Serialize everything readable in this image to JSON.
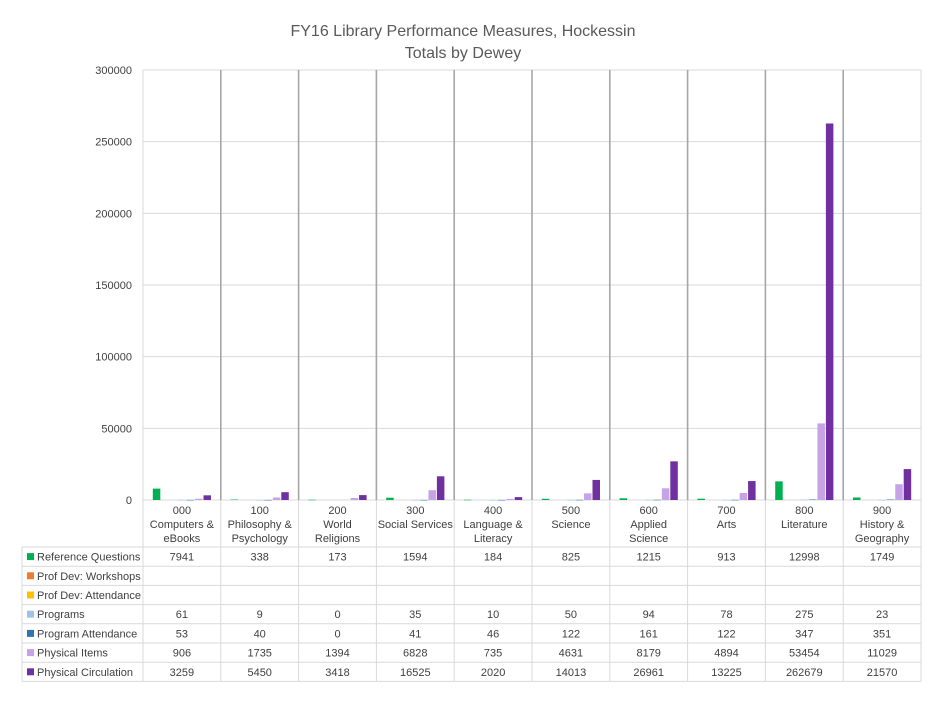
{
  "chart_data": {
    "type": "bar",
    "title": "FY16 Library Performance Measures, Hockessin",
    "subtitle": "Totals by Dewey",
    "ylim": [
      0,
      300000
    ],
    "yticks": [
      "300000",
      "250000",
      "200000",
      "150000",
      "100000",
      "50000",
      "0"
    ],
    "grid": true,
    "legend": "data-table",
    "categories": [
      [
        "000",
        "Computers &",
        "eBooks"
      ],
      [
        "100",
        "Philosophy &",
        "Psychology"
      ],
      [
        "200",
        "World",
        "Religions"
      ],
      [
        "300",
        "Social Services"
      ],
      [
        "400",
        "Language &",
        "Literacy"
      ],
      [
        "500",
        "Science"
      ],
      [
        "600",
        "Applied",
        "Science"
      ],
      [
        "700",
        "Arts"
      ],
      [
        "800",
        "Literature"
      ],
      [
        "900",
        "History &",
        "Geography"
      ]
    ],
    "series": [
      {
        "name": "Reference Questions",
        "color": "#00b050",
        "values": [
          7941,
          338,
          173,
          1594,
          184,
          825,
          1215,
          913,
          12998,
          1749
        ]
      },
      {
        "name": "Prof Dev: Workshops",
        "color": "#ed7d31",
        "values": [
          null,
          null,
          null,
          null,
          null,
          null,
          null,
          null,
          null,
          null
        ]
      },
      {
        "name": "Prof Dev: Attendance",
        "color": "#ffc000",
        "values": [
          null,
          null,
          null,
          null,
          null,
          null,
          null,
          null,
          null,
          null
        ]
      },
      {
        "name": "Programs",
        "color": "#9dc3e6",
        "values": [
          61,
          9,
          0,
          35,
          10,
          50,
          94,
          78,
          275,
          23
        ]
      },
      {
        "name": "Program Attendance",
        "color": "#2e75b6",
        "values": [
          53,
          40,
          0,
          41,
          46,
          122,
          161,
          122,
          347,
          351
        ]
      },
      {
        "name": "Physical Items",
        "color": "#c5a3e6",
        "values": [
          906,
          1735,
          1394,
          6828,
          735,
          4631,
          8179,
          4894,
          53454,
          11029
        ]
      },
      {
        "name": "Physical Circulation",
        "color": "#7030a0",
        "values": [
          3259,
          5450,
          3418,
          16525,
          2020,
          14013,
          26961,
          13225,
          262679,
          21570
        ]
      }
    ]
  }
}
